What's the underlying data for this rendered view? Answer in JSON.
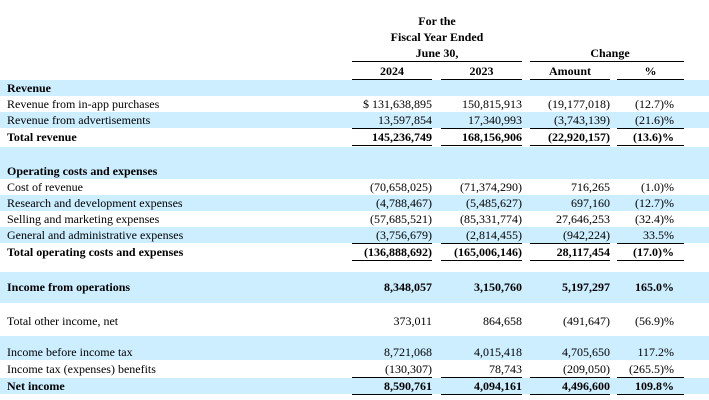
{
  "header": {
    "period_line1": "For the",
    "period_line2": "Fiscal Year Ended",
    "period_line3": "June 30,",
    "change": "Change",
    "col_2024": "2024",
    "col_2023": "2023",
    "col_amount": "Amount",
    "col_pct": "%"
  },
  "rows": [
    {
      "label": "Revenue",
      "bold": true,
      "shade": true,
      "values": []
    },
    {
      "label": "Revenue from in-app purchases",
      "values": [
        "$ 131,638,895",
        "150,815,913",
        "(19,177,018)",
        "(12.7)%"
      ]
    },
    {
      "label": "Revenue from advertisements",
      "shade": true,
      "values": [
        "13,597,854",
        "17,340,993",
        "(3,743,139)",
        "(21.6)%"
      ]
    },
    {
      "label": "Total revenue",
      "bold": true,
      "values": [
        "145,236,749",
        "168,156,906",
        "(22,920,157)",
        "(13.6)%"
      ]
    },
    {
      "label": "",
      "shade": true,
      "values": []
    },
    {
      "label": "Operating costs and expenses",
      "bold": true,
      "shade": true,
      "values": []
    },
    {
      "label": "Cost of revenue",
      "values": [
        "(70,658,025)",
        "(71,374,290)",
        "716,265",
        "(1.0)%"
      ]
    },
    {
      "label": "Research and development expenses",
      "shade": true,
      "values": [
        "(4,788,467)",
        "(5,485,627)",
        "697,160",
        "(12.7)%"
      ]
    },
    {
      "label": "Selling and marketing expenses",
      "values": [
        "(57,685,521)",
        "(85,331,774)",
        "27,646,253",
        "(32.4)%"
      ]
    },
    {
      "label": "General and administrative expenses",
      "shade": true,
      "values": [
        "(3,756,679)",
        "(2,814,455)",
        "(942,224)",
        "33.5%"
      ]
    },
    {
      "label": "Total operating costs and expenses",
      "bold": true,
      "values": [
        "(136,888,692)",
        "(165,006,146)",
        "28,117,454",
        "(17.0)%"
      ]
    },
    {
      "label": "Income from operations",
      "bold": true,
      "shade": true,
      "values": [
        "8,348,057",
        "3,150,760",
        "5,197,297",
        "165.0%"
      ]
    },
    {
      "label": "Total other income, net",
      "values": [
        "373,011",
        "864,658",
        "(491,647)",
        "(56.9)%"
      ]
    },
    {
      "label": "Income before income tax",
      "shade": true,
      "values": [
        "8,721,068",
        "4,015,418",
        "4,705,650",
        "117.2%"
      ]
    },
    {
      "label": "Income tax (expenses) benefits",
      "values": [
        "(130,307)",
        "78,743",
        "(209,050)",
        "(265.5)%"
      ]
    },
    {
      "label": "Net income",
      "bold": true,
      "shade": true,
      "values": [
        "8,590,761",
        "4,094,161",
        "4,496,600",
        "109.8%"
      ]
    }
  ]
}
